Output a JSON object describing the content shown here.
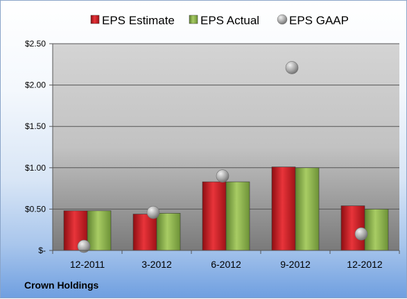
{
  "company_label": "Crown Holdings",
  "chart_data": {
    "type": "bar",
    "categories": [
      "12-2011",
      "3-2012",
      "6-2012",
      "9-2012",
      "12-2012"
    ],
    "series": [
      {
        "name": "EPS Estimate",
        "kind": "bar",
        "color": "#c0171c",
        "values": [
          0.48,
          0.44,
          0.83,
          1.01,
          0.54
        ]
      },
      {
        "name": "EPS Actual",
        "kind": "bar",
        "color": "#8db546",
        "values": [
          0.48,
          0.45,
          0.83,
          1.0,
          0.5
        ]
      },
      {
        "name": "EPS GAAP",
        "kind": "marker",
        "color": "#a8a8a8",
        "values": [
          0.05,
          0.46,
          0.9,
          2.21,
          0.2
        ]
      }
    ],
    "y_ticks": [
      {
        "value": 0,
        "label": "$-"
      },
      {
        "value": 0.5,
        "label": "$0.50"
      },
      {
        "value": 1.0,
        "label": "$1.00"
      },
      {
        "value": 1.5,
        "label": "$1.50"
      },
      {
        "value": 2.0,
        "label": "$2.00"
      },
      {
        "value": 2.5,
        "label": "$2.50"
      }
    ],
    "ylim": [
      0,
      2.5
    ],
    "grid": true,
    "legend_position": "top"
  }
}
